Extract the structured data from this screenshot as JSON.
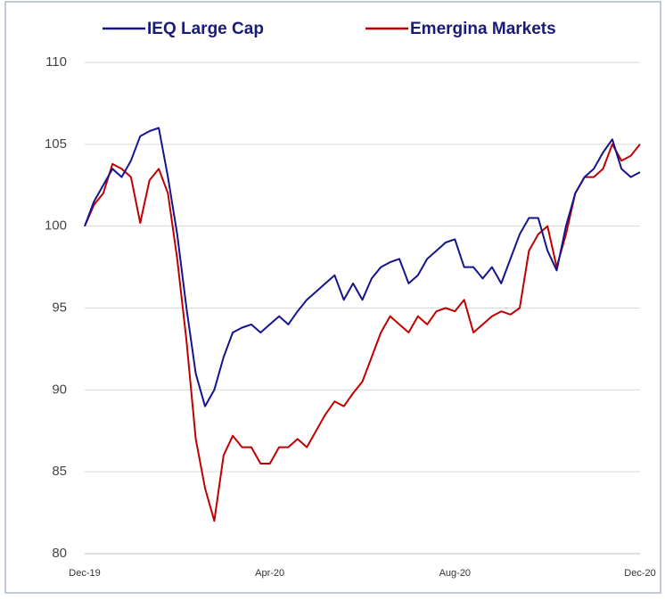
{
  "chart_data": {
    "type": "line",
    "categories": [
      "Dec-19",
      null,
      null,
      null,
      null,
      null,
      null,
      null,
      null,
      null,
      null,
      null,
      null,
      null,
      null,
      null,
      null,
      null,
      null,
      null,
      "Apr-20",
      null,
      null,
      null,
      null,
      null,
      null,
      null,
      null,
      null,
      null,
      null,
      null,
      null,
      null,
      null,
      null,
      null,
      null,
      null,
      "Aug-20",
      null,
      null,
      null,
      null,
      null,
      null,
      null,
      null,
      null,
      null,
      null,
      null,
      null,
      null,
      null,
      null,
      null,
      null,
      null,
      "Dec-20"
    ],
    "series": [
      {
        "name": "IEQ Large Cap",
        "color": "#14148c",
        "values": [
          100,
          101.5,
          102.5,
          103.5,
          103,
          104,
          105.5,
          105.8,
          106,
          103,
          99.5,
          95,
          91,
          89,
          90,
          92,
          93.5,
          93.8,
          94,
          93.5,
          94,
          94.5,
          94,
          94.8,
          95.5,
          96,
          96.5,
          97,
          95.5,
          96.5,
          95.5,
          96.8,
          97.5,
          97.8,
          98,
          96.5,
          97,
          98,
          98.5,
          99,
          99.2,
          97.5,
          97.5,
          96.8,
          97.5,
          96.5,
          98,
          99.5,
          100.5,
          100.5,
          98.5,
          97.3,
          100,
          102,
          103,
          103.5,
          104.5,
          105.3,
          103.5,
          103,
          103.3
        ]
      },
      {
        "name": "Emergina Markets",
        "color": "#c00000",
        "values": [
          100,
          101.3,
          102,
          103.8,
          103.5,
          103,
          100.2,
          102.8,
          103.5,
          102,
          98,
          93,
          87,
          84,
          82,
          86,
          87.2,
          86.5,
          86.5,
          85.5,
          85.5,
          86.5,
          86.5,
          87,
          86.5,
          87.5,
          88.5,
          89.3,
          89,
          89.8,
          90.5,
          92,
          93.5,
          94.5,
          94,
          93.5,
          94.5,
          94,
          94.8,
          95,
          94.8,
          95.5,
          93.5,
          94,
          94.5,
          94.8,
          94.6,
          95,
          98.5,
          99.5,
          100,
          97.5,
          99.5,
          102,
          103,
          103,
          103.5,
          105,
          104,
          104.3,
          105
        ]
      }
    ],
    "ylim": [
      80,
      110
    ],
    "yticks": [
      80,
      85,
      90,
      95,
      100,
      105,
      110
    ],
    "grid": true
  }
}
